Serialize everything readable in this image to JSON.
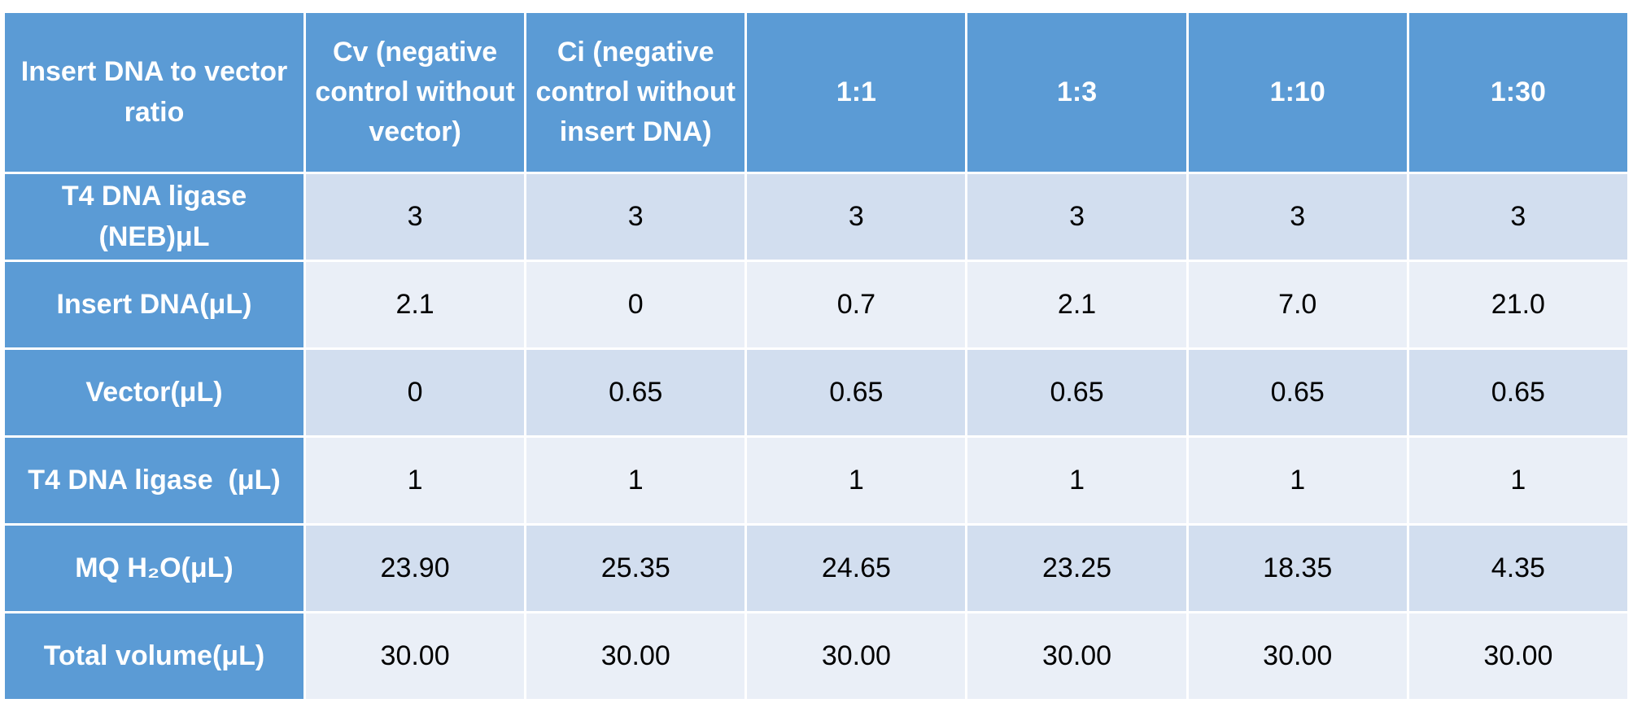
{
  "table": {
    "header": [
      "Insert DNA to vector ratio",
      "Cv (negative control without vector)",
      "Ci (negative control without insert DNA)",
      "1:1",
      "1:3",
      "1:10",
      "1:30"
    ],
    "rows": [
      [
        "T4 DNA ligase (NEB)μL",
        "3",
        "3",
        "3",
        "3",
        "3",
        "3"
      ],
      [
        "Insert DNA(μL)",
        "2.1",
        "0",
        "0.7",
        "2.1",
        "7.0",
        "21.0"
      ],
      [
        "Vector(μL)",
        "0",
        "0.65",
        "0.65",
        "0.65",
        "0.65",
        "0.65"
      ],
      [
        "T4 DNA ligase  (μL)",
        "1",
        "1",
        "1",
        "1",
        "1",
        "1"
      ],
      [
        "MQ H₂O(μL)",
        "23.90",
        "25.35",
        "24.65",
        "23.25",
        "18.35",
        "4.35"
      ],
      [
        "Total volume(μL)",
        "30.00",
        "30.00",
        "30.00",
        "30.00",
        "30.00",
        "30.00"
      ]
    ]
  }
}
